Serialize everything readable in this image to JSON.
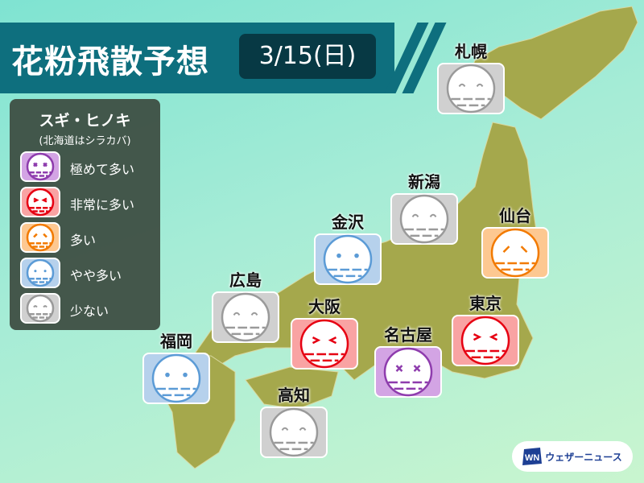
{
  "title": "花粉飛散予想",
  "date": "3/15(日)",
  "legend": {
    "heading": "スギ・ヒノキ",
    "subheading": "(北海道はシラカバ)",
    "levels": [
      {
        "key": "extreme",
        "label": "極めて多い",
        "bg": "#d3a4e4",
        "stroke": "#8e3cad"
      },
      {
        "key": "very_high",
        "label": "非常に多い",
        "bg": "#f9a3a3",
        "stroke": "#e60012"
      },
      {
        "key": "high",
        "label": "多い",
        "bg": "#fdc891",
        "stroke": "#f27a00"
      },
      {
        "key": "moderate",
        "label": "やや多い",
        "bg": "#b6d1ec",
        "stroke": "#5b9bd6"
      },
      {
        "key": "low",
        "label": "少ない",
        "bg": "#d0d0d0",
        "stroke": "#9a9a9a"
      }
    ]
  },
  "cities": [
    {
      "name": "札幌",
      "level": "low"
    },
    {
      "name": "新潟",
      "level": "low"
    },
    {
      "name": "仙台",
      "level": "high"
    },
    {
      "name": "金沢",
      "level": "moderate"
    },
    {
      "name": "広島",
      "level": "low"
    },
    {
      "name": "大阪",
      "level": "very_high"
    },
    {
      "name": "東京",
      "level": "very_high"
    },
    {
      "name": "名古屋",
      "level": "extreme"
    },
    {
      "name": "福岡",
      "level": "moderate"
    },
    {
      "name": "高知",
      "level": "low"
    }
  ],
  "brand": {
    "logo_text": "WN",
    "name": "ウェザーニュース"
  },
  "colors": {
    "land": "#a5a84c",
    "title_bg": "#0e6f7e",
    "date_bg": "#073944"
  }
}
